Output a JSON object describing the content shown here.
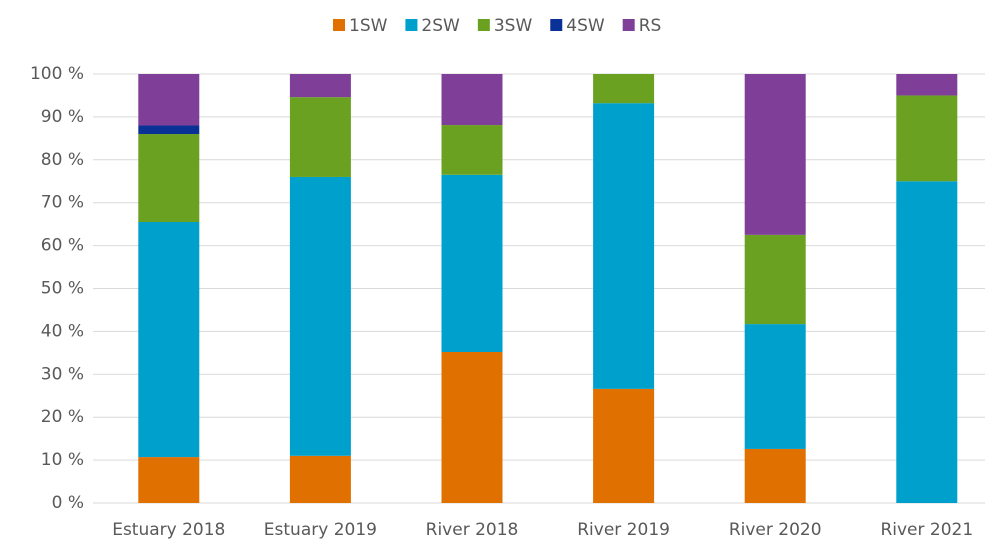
{
  "chart_data": {
    "type": "stacked_bar",
    "categories": [
      "Estuary 2018",
      "Estuary 2019",
      "River 2018",
      "River 2019",
      "River 2020",
      "River 2021"
    ],
    "series": [
      {
        "name": "1SW",
        "color": "#e07000",
        "values": [
          10.7,
          11,
          35.2,
          26.6,
          12.6,
          0
        ]
      },
      {
        "name": "2SW",
        "color": "#00a0cc",
        "values": [
          54.8,
          65,
          41.3,
          66.6,
          29.1,
          75
        ]
      },
      {
        "name": "3SW",
        "color": "#6aa121",
        "values": [
          20.5,
          18.6,
          11.6,
          6.8,
          20.8,
          20
        ]
      },
      {
        "name": "4SW",
        "color": "#0a3296",
        "values": [
          2,
          0,
          0,
          0,
          0,
          0
        ]
      },
      {
        "name": "RS",
        "color": "#7f3f98",
        "values": [
          12,
          5.4,
          11.9,
          0,
          37.5,
          5
        ]
      }
    ],
    "ylim": [
      0,
      100
    ],
    "yticks": [
      {
        "value": 0,
        "label": "0 %"
      },
      {
        "value": 10,
        "label": "10 %"
      },
      {
        "value": 20,
        "label": "20 %"
      },
      {
        "value": 30,
        "label": "30 %"
      },
      {
        "value": 40,
        "label": "40 %"
      },
      {
        "value": 50,
        "label": "50 %"
      },
      {
        "value": 60,
        "label": "60 %"
      },
      {
        "value": 70,
        "label": "70 %"
      },
      {
        "value": 80,
        "label": "80 %"
      },
      {
        "value": 90,
        "label": "90 %"
      },
      {
        "value": 100,
        "label": "100 %"
      }
    ],
    "grid": true,
    "legend": "top"
  }
}
